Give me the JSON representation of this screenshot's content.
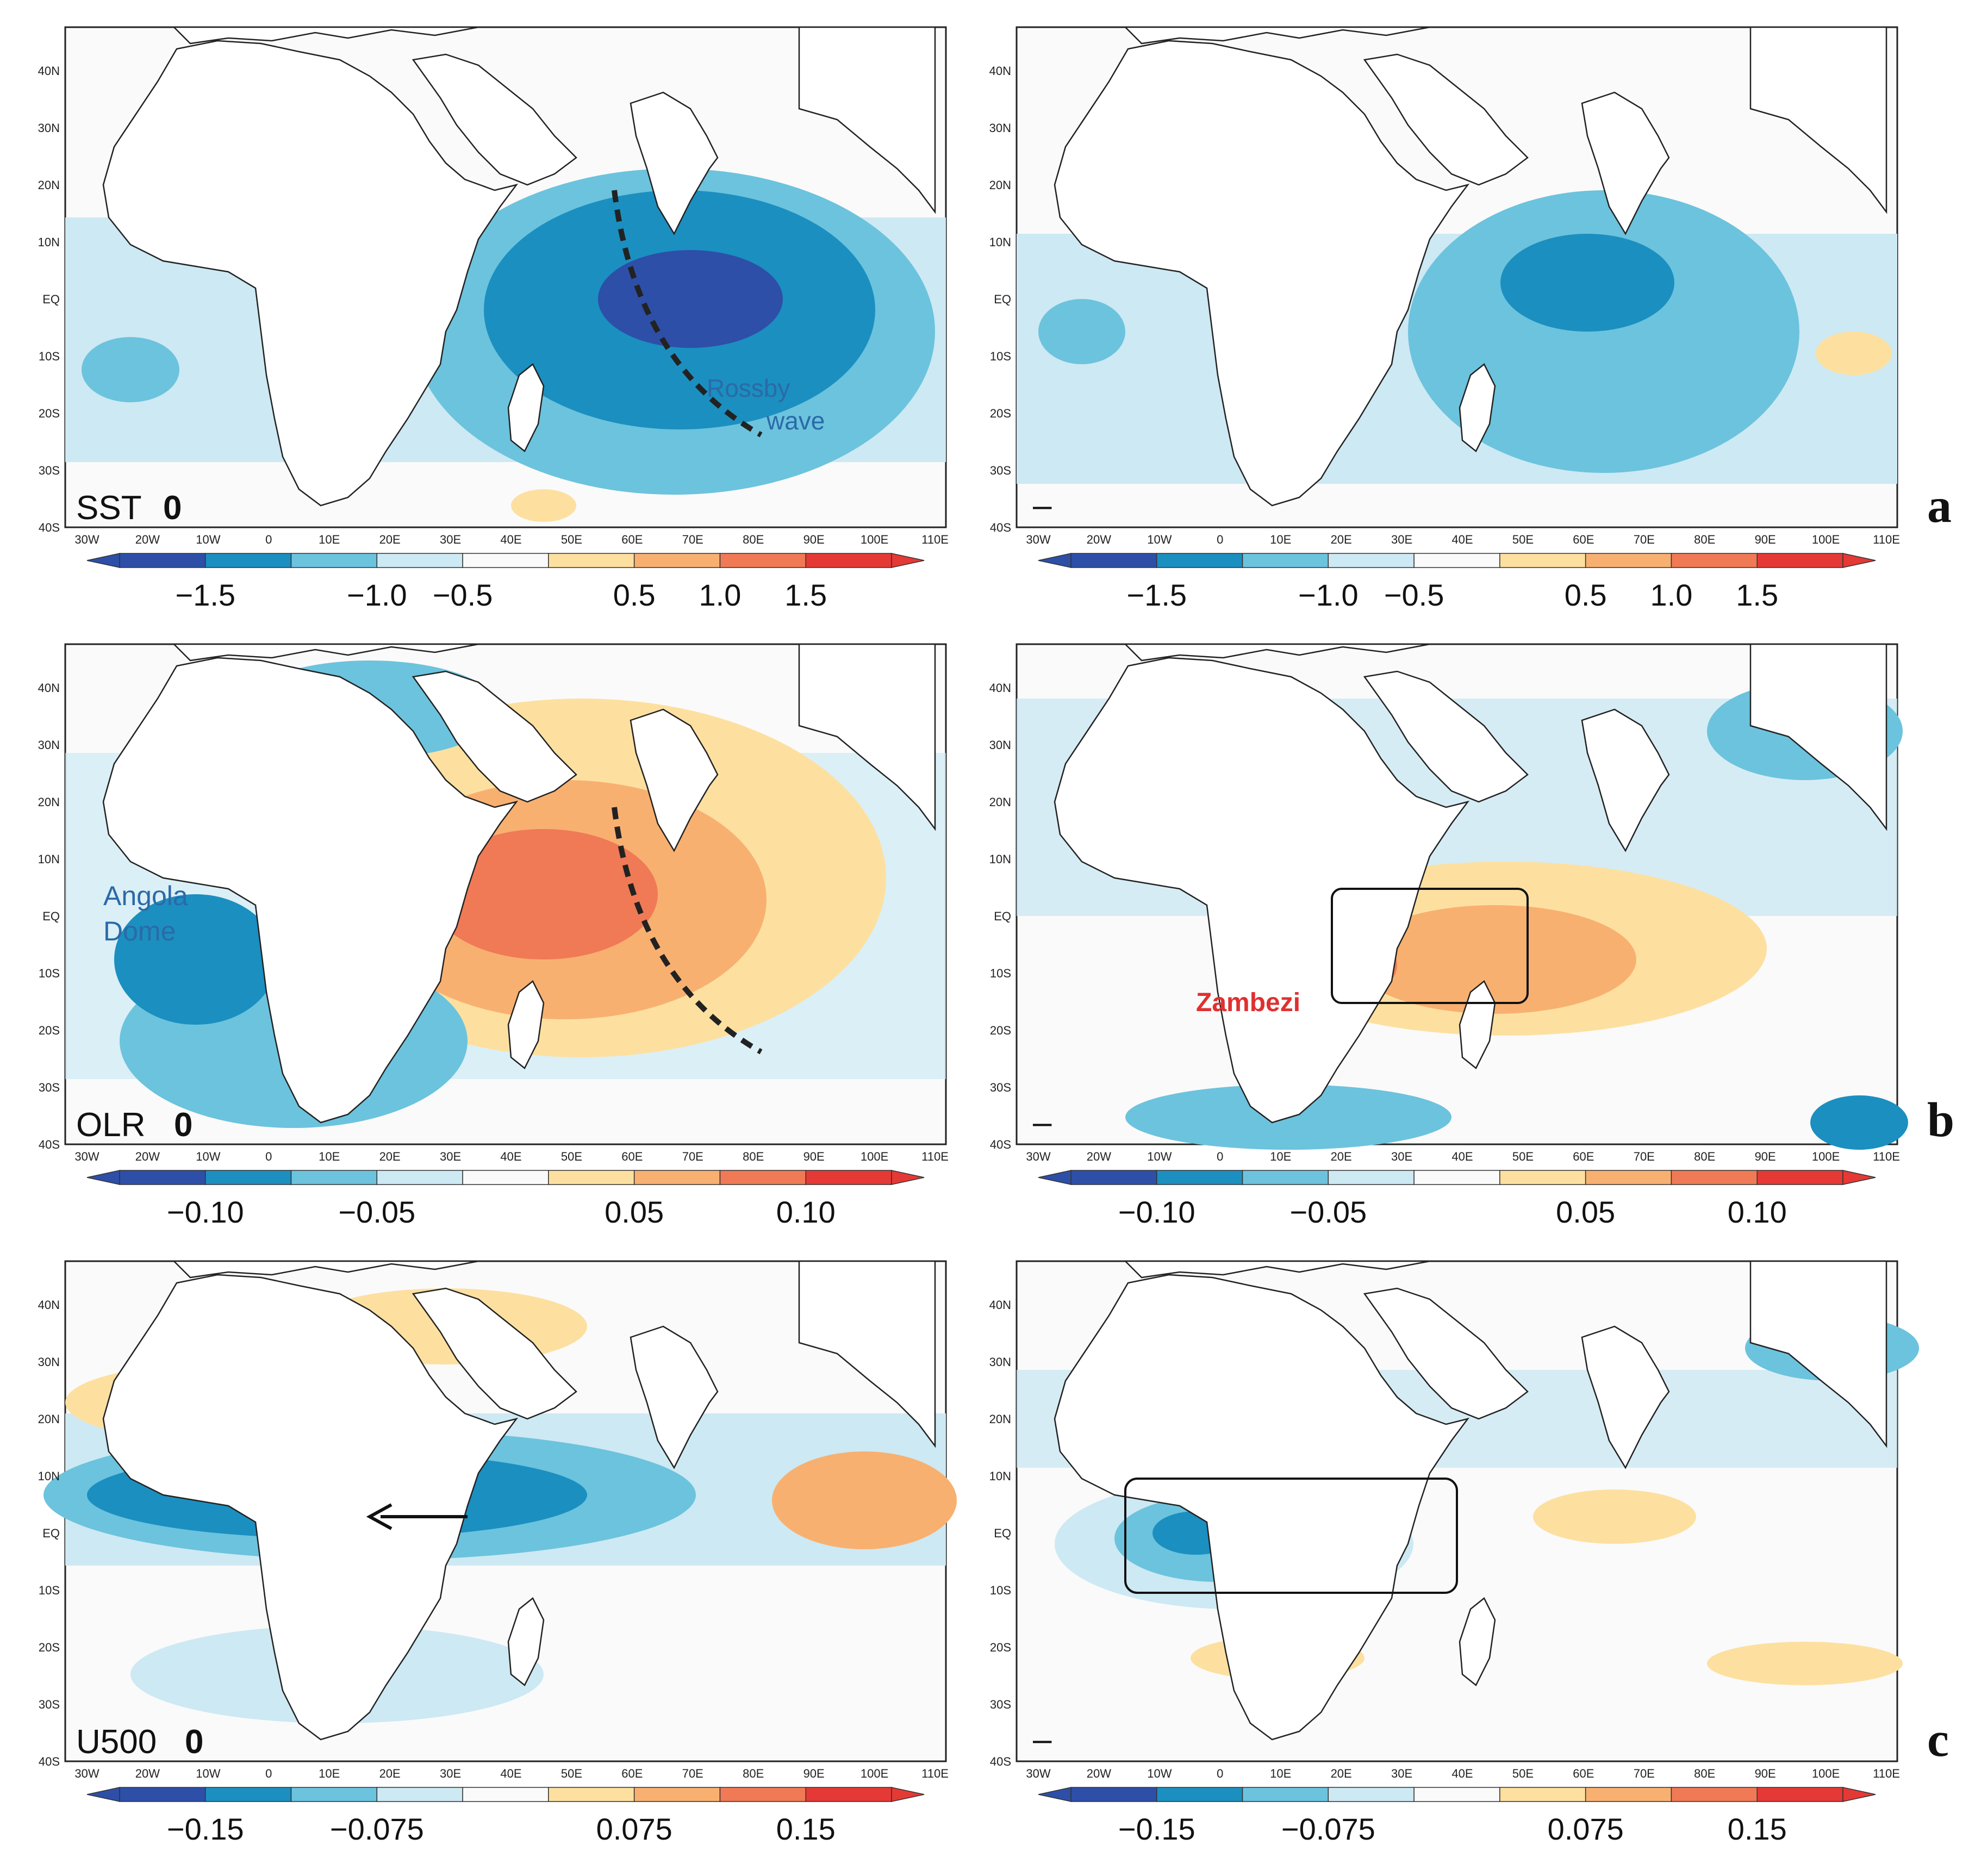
{
  "figure": {
    "rows": [
      {
        "letter": "a",
        "left_label": {
          "var": "SST",
          "lag": "0"
        },
        "right_label": {
          "var": "",
          "lag": "–"
        },
        "colorbar_ticks": [
          "−1.5",
          "−1.0",
          "−0.5",
          "0.5",
          "1.0",
          "1.5"
        ],
        "annotations": {
          "rossby_1": "Rossby",
          "rossby_2": "wave"
        }
      },
      {
        "letter": "b",
        "left_label": {
          "var": "OLR",
          "lag": "0"
        },
        "right_label": {
          "var": "",
          "lag": "–"
        },
        "colorbar_ticks": [
          "−0.10",
          "−0.05",
          "0.05",
          "0.10"
        ],
        "annotations": {
          "angola_1": "Angola",
          "angola_2": "Dome",
          "zambezi": "Zambezi"
        }
      },
      {
        "letter": "c",
        "left_label": {
          "var": "U500",
          "lag": "0"
        },
        "right_label": {
          "var": "",
          "lag": "–"
        },
        "colorbar_ticks": [
          "−0.15",
          "−0.075",
          "0.075",
          "0.15"
        ],
        "annotations": {}
      }
    ],
    "lat_ticks": [
      "40N",
      "30N",
      "20N",
      "10N",
      "EQ",
      "10S",
      "20S",
      "30S",
      "40S"
    ],
    "lon_ticks": [
      "30W",
      "20W",
      "10W",
      "0",
      "10E",
      "20E",
      "30E",
      "40E",
      "50E",
      "60E",
      "70E",
      "80E",
      "90E",
      "100E",
      "110E"
    ],
    "colors": {
      "neg3": "#2d4fa8",
      "neg2": "#1b8fc0",
      "neg1": "#6cc3dd",
      "neg0": "#cde9f3",
      "neutral": "#fafafa",
      "pos0": "#fde0a0",
      "pos1": "#f8b070",
      "pos2": "#f07a55",
      "pos3": "#e53935",
      "annot_blue": "#2a6aa8",
      "annot_red": "#e03030"
    }
  }
}
